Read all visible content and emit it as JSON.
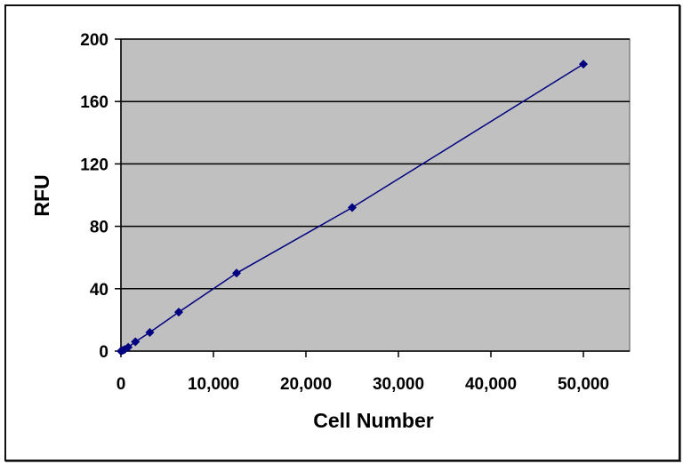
{
  "chart_data": {
    "type": "scatter",
    "title": "",
    "xlabel": "Cell Number",
    "ylabel": "RFU",
    "xlim": [
      0,
      55000
    ],
    "ylim": [
      0,
      200
    ],
    "x_ticks": [
      0,
      10000,
      20000,
      30000,
      40000,
      50000
    ],
    "x_tick_labels": [
      "0",
      "10,000",
      "20,000",
      "30,000",
      "40,000",
      "50,000"
    ],
    "y_ticks": [
      0,
      40,
      80,
      120,
      160,
      200
    ],
    "y_tick_labels": [
      "0",
      "40",
      "80",
      "120",
      "160",
      "200"
    ],
    "grid": "horizontal major",
    "legend": "none",
    "plot_background": "#c0c0c0",
    "series": [
      {
        "name": "RFU",
        "color": "#000080",
        "marker": "diamond",
        "line": true,
        "x": [
          0,
          195,
          390,
          781,
          1563,
          3125,
          6250,
          12500,
          25000,
          50000
        ],
        "y": [
          0,
          0.5,
          1,
          2.5,
          6,
          12,
          25,
          50,
          92,
          184
        ]
      }
    ]
  }
}
